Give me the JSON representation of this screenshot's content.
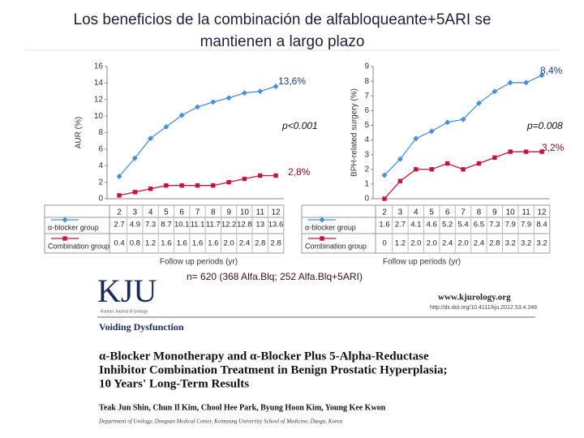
{
  "title": "Los beneficios de la combinación de  alfabloqueante+5ARI  se",
  "title_line2": "mantienen a largo plazo",
  "chart_data": [
    {
      "type": "line",
      "ylabel": "AUR (%)",
      "xlabel": "Follow up periods (yr)",
      "categories": [
        "2",
        "3",
        "4",
        "5",
        "6",
        "7",
        "8",
        "9",
        "10",
        "11",
        "12"
      ],
      "ylim": [
        0,
        16
      ],
      "yticks": [
        0,
        2,
        4,
        6,
        8,
        10,
        12,
        14,
        16
      ],
      "series": [
        {
          "name": "α-blocker group",
          "color": "#4a90d9",
          "marker": "diamond",
          "values": [
            2.7,
            4.9,
            7.3,
            8.7,
            10.1,
            11.1,
            11.7,
            12.2,
            12.8,
            13,
            13.6
          ],
          "value_labels": [
            "2.7",
            "4.9",
            "7.3",
            "8.7",
            "10.1",
            "11.1",
            "11.7",
            "12.2",
            "12.8",
            "13",
            "13.6"
          ]
        },
        {
          "name": "Combination group",
          "color": "#c8143c",
          "marker": "square",
          "values": [
            0.4,
            0.8,
            1.2,
            1.6,
            1.6,
            1.6,
            1.6,
            2.0,
            2.4,
            2.8,
            2.8
          ],
          "value_labels": [
            "0.4",
            "0.8",
            "1.2",
            "1.6",
            "1.6",
            "1.6",
            "1.6",
            "2.0",
            "2.4",
            "2.8",
            "2.8"
          ]
        }
      ],
      "annotations": [
        "13,6%",
        "p<0.001",
        "2,8%"
      ]
    },
    {
      "type": "line",
      "ylabel": "BPH-related surgery (%)",
      "xlabel": "Follow up periods (yr)",
      "categories": [
        "2",
        "3",
        "4",
        "5",
        "6",
        "7",
        "8",
        "9",
        "10",
        "11",
        "12"
      ],
      "ylim": [
        0,
        9
      ],
      "yticks": [
        0,
        1,
        2,
        3,
        4,
        5,
        6,
        7,
        8,
        9
      ],
      "series": [
        {
          "name": "α-blocker group",
          "color": "#4a90d9",
          "marker": "diamond",
          "values": [
            1.6,
            2.7,
            4.1,
            4.6,
            5.2,
            5.4,
            6.5,
            7.3,
            7.9,
            7.9,
            8.4
          ],
          "value_labels": [
            "1.6",
            "2.7",
            "4.1",
            "4.6",
            "5.2",
            "5.4",
            "6.5",
            "7.3",
            "7.9",
            "7.9",
            "8.4"
          ]
        },
        {
          "name": "Combination group",
          "color": "#c8143c",
          "marker": "square",
          "values": [
            0,
            1.2,
            2.0,
            2.0,
            2.4,
            2.0,
            2.4,
            2.8,
            3.2,
            3.2,
            3.2
          ],
          "value_labels": [
            "0",
            "1.2",
            "2.0",
            "2.0",
            "2.4",
            "2.0",
            "2.4",
            "2.8",
            "3.2",
            "3.2",
            "3.2"
          ]
        }
      ],
      "annotations": [
        "8,4%",
        "p=0.008",
        "3,2%"
      ]
    }
  ],
  "note": "n= 620 (368 Alfa.Blq; 252 Alfa.Blq+5ARI)",
  "article": {
    "logo": "KJU",
    "journal": "Korean Journal of Urology",
    "url": "www.kjurology.org",
    "doi": "http://dx.doi.org/10.4111/kju.2012.53.4.248",
    "section": "Voiding Dysfunction",
    "title_lines": [
      "α-Blocker Monotherapy and α-Blocker Plus 5-Alpha-Reductase",
      "Inhibitor Combination Treatment in Benign Prostatic Hyperplasia;",
      "10 Years' Long-Term Results"
    ],
    "authors": "Teak Jun Shin, Chun Il Kim, Chool Hee Park, Byung Hoon Kim, Young Kee Kwon",
    "affiliation": "Department of Urology, Dongsan Medical Center, Keimyung University School of Medicine, Daegu, Korea"
  }
}
